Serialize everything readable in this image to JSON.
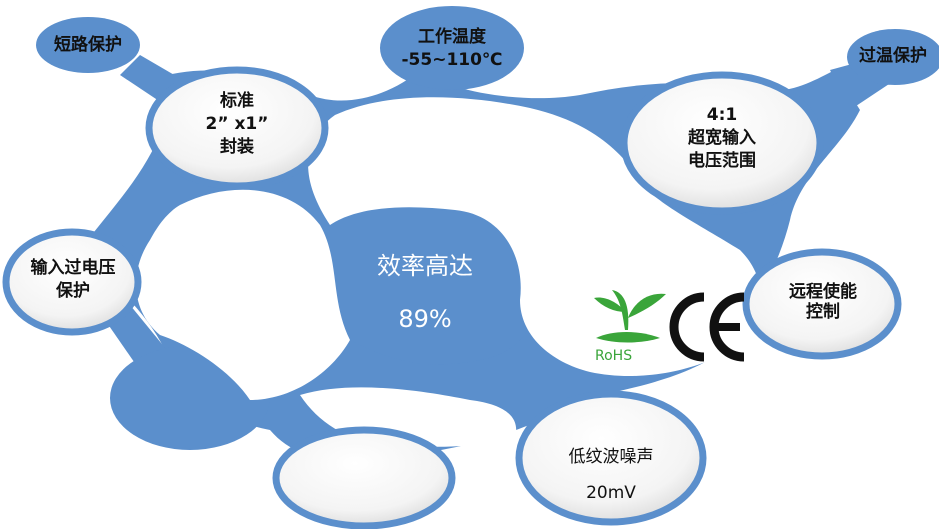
{
  "features": {
    "short_circuit": "短路保护",
    "temp": {
      "line1": "工作温度",
      "line2": "-55~110℃"
    },
    "over_temp": "过温保护",
    "package": {
      "line1": "标准",
      "line2": "2”  x1”",
      "line3": "封装"
    },
    "input_range": {
      "line1": "4:1",
      "line2": "超宽输入",
      "line3": "电压范围"
    },
    "efficiency": {
      "line1": "效率高达",
      "line2": "89%"
    },
    "overvoltage": {
      "line1": "输入过电压",
      "line2": "保护"
    },
    "remote": {
      "line1": "远程使能",
      "line2": "控制"
    },
    "ripple": {
      "line1": "低纹波噪声",
      "line2": "20mV"
    }
  },
  "certifications": {
    "rohs": "RoHS",
    "ce": "CE"
  },
  "colors": {
    "accent": "#5b8fcc",
    "leaf": "#3aa53a"
  }
}
